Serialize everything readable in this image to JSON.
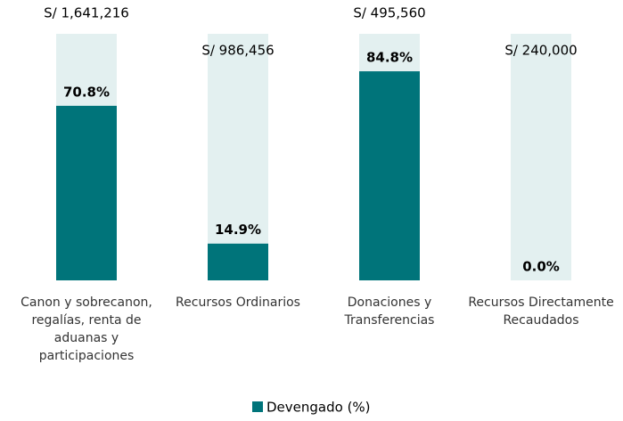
{
  "chart_data": {
    "type": "bar",
    "categories": [
      "Canon y sobrecanon, regalías, renta de aduanas y participaciones",
      "Recursos Ordinarios",
      "Donaciones y Transferencias",
      "Recursos Directamente Recaudados"
    ],
    "series": [
      {
        "name": "Devengado (%)",
        "color": "#00747a",
        "values": [
          70.8,
          14.9,
          84.8,
          0.0
        ],
        "value_labels": [
          "70.8%",
          "14.9%",
          "84.8%",
          "0.0%"
        ]
      }
    ],
    "budget_labels": [
      "S/ 1,641,216",
      "S/ 986,456",
      "S/ 495,560",
      "S/ 240,000"
    ],
    "track_color": "#e3f0f0",
    "ylim": [
      0,
      100
    ]
  }
}
